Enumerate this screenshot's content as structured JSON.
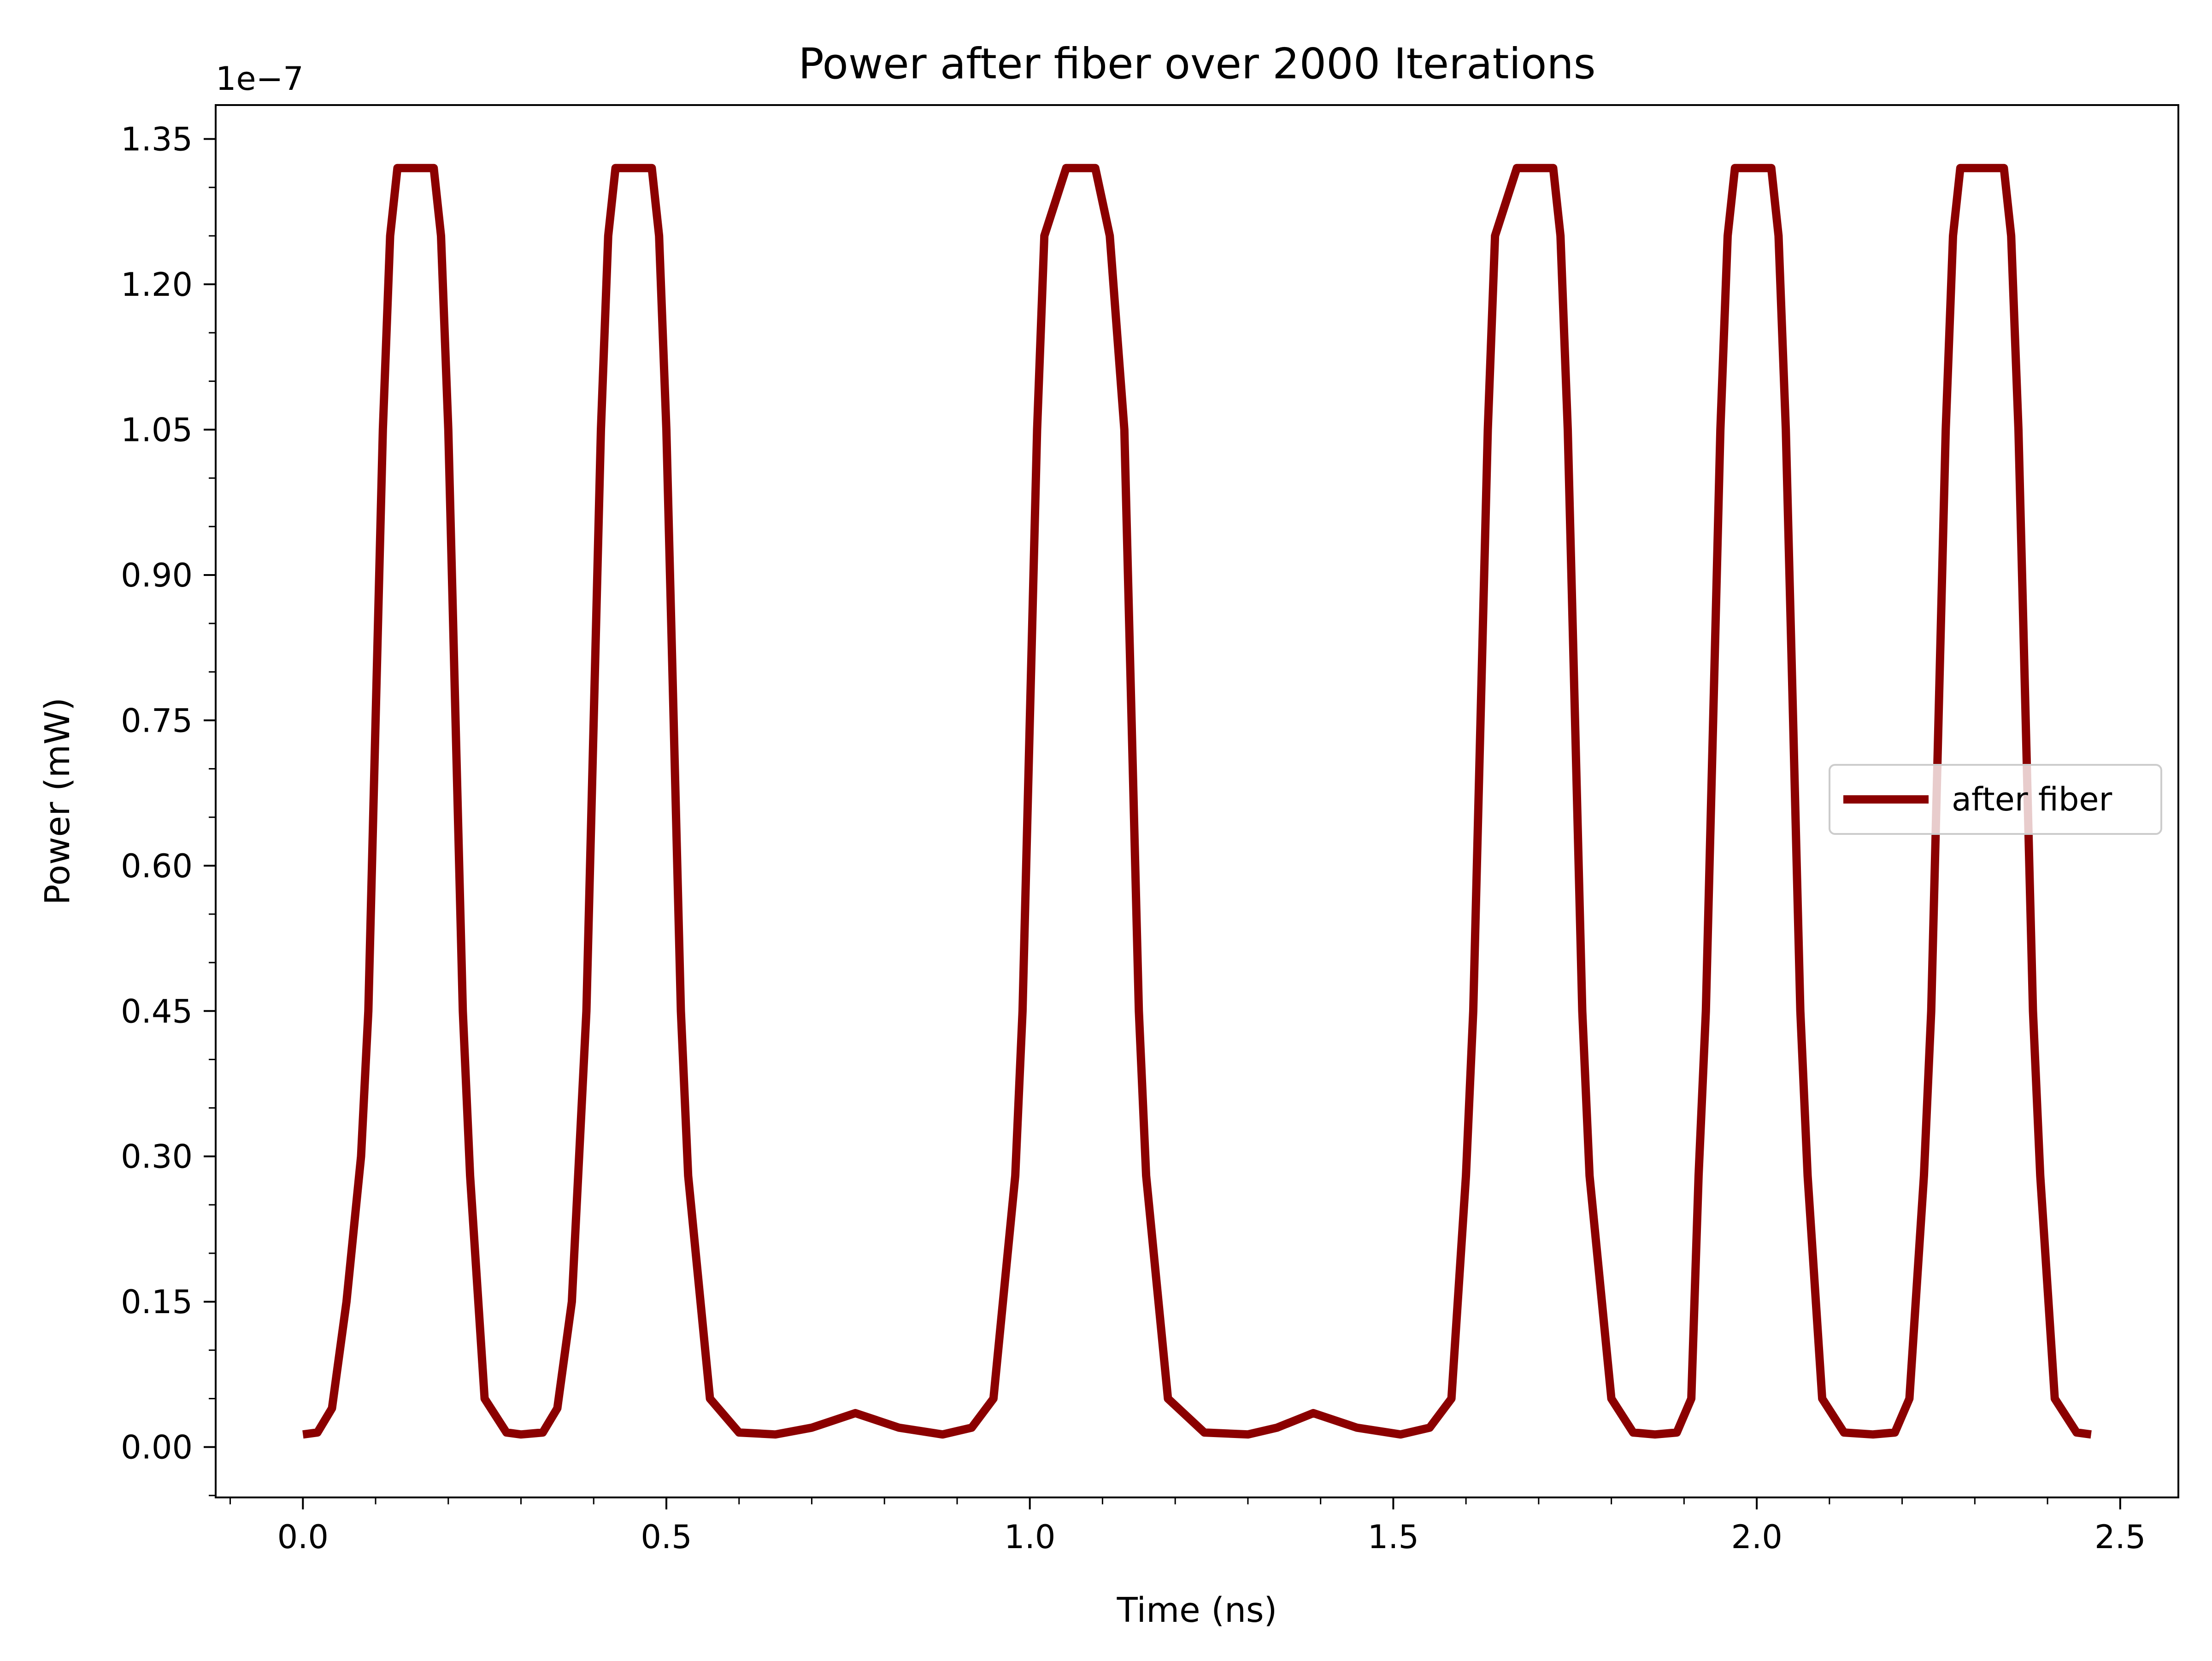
{
  "chart_data": {
    "type": "line",
    "title": "Power after fiber over 2000 Iterations",
    "xlabel": "Time (ns)",
    "ylabel": "Power (mW)",
    "y_offset_text": "1e−7",
    "xlim": [
      -0.12,
      2.58
    ],
    "ylim": [
      -0.052,
      1.385
    ],
    "x_ticks": [
      0.0,
      0.5,
      1.0,
      1.5,
      2.0,
      2.5
    ],
    "x_tick_labels": [
      "0.0",
      "0.5",
      "1.0",
      "1.5",
      "2.0",
      "2.5"
    ],
    "y_ticks": [
      0.0,
      0.15,
      0.3,
      0.45,
      0.6,
      0.75,
      0.9,
      1.05,
      1.2,
      1.35
    ],
    "y_tick_labels": [
      "0.00",
      "0.15",
      "0.30",
      "0.45",
      "0.60",
      "0.75",
      "0.90",
      "1.05",
      "1.20",
      "1.35"
    ],
    "grid": false,
    "legend_position": "center-right",
    "series": [
      {
        "name": "after fiber",
        "color": "#8b0000",
        "points": [
          [
            0.0,
            0.013
          ],
          [
            0.02,
            0.015
          ],
          [
            0.04,
            0.04
          ],
          [
            0.06,
            0.15
          ],
          [
            0.08,
            0.3
          ],
          [
            0.09,
            0.45
          ],
          [
            0.1,
            0.75
          ],
          [
            0.11,
            1.05
          ],
          [
            0.12,
            1.25
          ],
          [
            0.13,
            1.32
          ],
          [
            0.18,
            1.32
          ],
          [
            0.19,
            1.25
          ],
          [
            0.2,
            1.05
          ],
          [
            0.21,
            0.75
          ],
          [
            0.22,
            0.45
          ],
          [
            0.23,
            0.28
          ],
          [
            0.25,
            0.05
          ],
          [
            0.28,
            0.015
          ],
          [
            0.3,
            0.013
          ],
          [
            0.33,
            0.015
          ],
          [
            0.35,
            0.04
          ],
          [
            0.37,
            0.15
          ],
          [
            0.38,
            0.3
          ],
          [
            0.39,
            0.45
          ],
          [
            0.4,
            0.75
          ],
          [
            0.41,
            1.05
          ],
          [
            0.42,
            1.25
          ],
          [
            0.43,
            1.32
          ],
          [
            0.48,
            1.32
          ],
          [
            0.49,
            1.25
          ],
          [
            0.5,
            1.05
          ],
          [
            0.51,
            0.75
          ],
          [
            0.52,
            0.45
          ],
          [
            0.53,
            0.28
          ],
          [
            0.56,
            0.05
          ],
          [
            0.6,
            0.015
          ],
          [
            0.65,
            0.013
          ],
          [
            0.7,
            0.02
          ],
          [
            0.76,
            0.035
          ],
          [
            0.82,
            0.02
          ],
          [
            0.88,
            0.013
          ],
          [
            0.92,
            0.02
          ],
          [
            0.95,
            0.05
          ],
          [
            0.98,
            0.28
          ],
          [
            0.99,
            0.45
          ],
          [
            1.0,
            0.75
          ],
          [
            1.01,
            1.05
          ],
          [
            1.02,
            1.25
          ],
          [
            1.05,
            1.32
          ],
          [
            1.09,
            1.32
          ],
          [
            1.11,
            1.25
          ],
          [
            1.13,
            1.05
          ],
          [
            1.14,
            0.75
          ],
          [
            1.15,
            0.45
          ],
          [
            1.16,
            0.28
          ],
          [
            1.19,
            0.05
          ],
          [
            1.24,
            0.015
          ],
          [
            1.3,
            0.013
          ],
          [
            1.34,
            0.02
          ],
          [
            1.39,
            0.035
          ],
          [
            1.45,
            0.02
          ],
          [
            1.51,
            0.013
          ],
          [
            1.55,
            0.02
          ],
          [
            1.58,
            0.05
          ],
          [
            1.6,
            0.28
          ],
          [
            1.61,
            0.45
          ],
          [
            1.62,
            0.75
          ],
          [
            1.63,
            1.05
          ],
          [
            1.64,
            1.25
          ],
          [
            1.67,
            1.32
          ],
          [
            1.72,
            1.32
          ],
          [
            1.73,
            1.25
          ],
          [
            1.74,
            1.05
          ],
          [
            1.75,
            0.75
          ],
          [
            1.76,
            0.45
          ],
          [
            1.77,
            0.28
          ],
          [
            1.8,
            0.05
          ],
          [
            1.83,
            0.015
          ],
          [
            1.86,
            0.013
          ],
          [
            1.89,
            0.015
          ],
          [
            1.91,
            0.05
          ],
          [
            1.92,
            0.28
          ],
          [
            1.93,
            0.45
          ],
          [
            1.94,
            0.75
          ],
          [
            1.95,
            1.05
          ],
          [
            1.96,
            1.25
          ],
          [
            1.97,
            1.32
          ],
          [
            2.02,
            1.32
          ],
          [
            2.03,
            1.25
          ],
          [
            2.04,
            1.05
          ],
          [
            2.05,
            0.75
          ],
          [
            2.06,
            0.45
          ],
          [
            2.07,
            0.28
          ],
          [
            2.09,
            0.05
          ],
          [
            2.12,
            0.015
          ],
          [
            2.16,
            0.013
          ],
          [
            2.19,
            0.015
          ],
          [
            2.21,
            0.05
          ],
          [
            2.23,
            0.28
          ],
          [
            2.24,
            0.45
          ],
          [
            2.25,
            0.75
          ],
          [
            2.26,
            1.05
          ],
          [
            2.27,
            1.25
          ],
          [
            2.28,
            1.32
          ],
          [
            2.34,
            1.32
          ],
          [
            2.35,
            1.25
          ],
          [
            2.36,
            1.05
          ],
          [
            2.37,
            0.75
          ],
          [
            2.38,
            0.45
          ],
          [
            2.39,
            0.28
          ],
          [
            2.41,
            0.05
          ],
          [
            2.44,
            0.015
          ],
          [
            2.46,
            0.013
          ]
        ]
      }
    ]
  }
}
